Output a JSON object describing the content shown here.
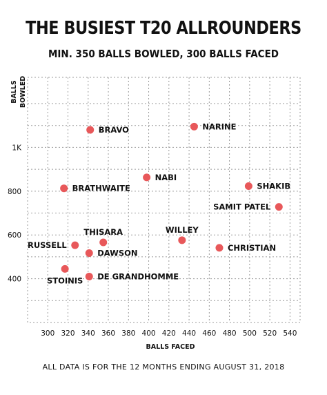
{
  "title": "THE BUSIEST T20 ALLROUNDERS",
  "subtitle": "MIN. 350 BALLS BOWLED, 300 BALLS FACED",
  "footnote": "ALL DATA IS FOR THE 12 MONTHS ENDING AUGUST 31, 2018",
  "colors": {
    "point": "#e8585a",
    "grid": "#9a9a9a",
    "text": "#111111"
  },
  "chart_data": {
    "type": "scatter",
    "title": "THE BUSIEST T20 ALLROUNDERS",
    "subtitle": "MIN. 350 BALLS BOWLED, 300 BALLS FACED",
    "xlabel": "BALLS FACED",
    "ylabel": "BALLS BOWLED",
    "xlim": [
      280,
      550
    ],
    "ylim": [
      200,
      1320
    ],
    "xticks": [
      300,
      320,
      340,
      360,
      380,
      400,
      420,
      440,
      460,
      480,
      500,
      520,
      540
    ],
    "xtick_labels": [
      "300",
      "320",
      "340",
      "360",
      "380",
      "400",
      "420",
      "440",
      "460",
      "480",
      "500",
      "520",
      "540"
    ],
    "yticks": [
      400,
      600,
      800,
      1000
    ],
    "ytick_labels": [
      "400",
      "600",
      "800",
      "1K"
    ],
    "grid": true,
    "points": [
      {
        "name": "BRAVO",
        "x": 342,
        "y": 1080,
        "label_side": "right"
      },
      {
        "name": "NARINE",
        "x": 445,
        "y": 1095,
        "label_side": "right"
      },
      {
        "name": "NABI",
        "x": 398,
        "y": 863,
        "label_side": "right"
      },
      {
        "name": "BRATHWAITE",
        "x": 316,
        "y": 813,
        "label_side": "right"
      },
      {
        "name": "SHAKIB",
        "x": 499,
        "y": 823,
        "label_side": "right"
      },
      {
        "name": "SAMIT PATEL",
        "x": 529,
        "y": 728,
        "label_side": "left"
      },
      {
        "name": "THISARA",
        "x": 355,
        "y": 566,
        "label_side": "above"
      },
      {
        "name": "WILLEY",
        "x": 433,
        "y": 576,
        "label_side": "above"
      },
      {
        "name": "RUSSELL",
        "x": 327,
        "y": 553,
        "label_side": "left"
      },
      {
        "name": "CHRISTIAN",
        "x": 470,
        "y": 541,
        "label_side": "right"
      },
      {
        "name": "DAWSON",
        "x": 341,
        "y": 517,
        "label_side": "right"
      },
      {
        "name": "STOINIS",
        "x": 317,
        "y": 445,
        "label_side": "below"
      },
      {
        "name": "DE GRANDHOMME",
        "x": 341,
        "y": 410,
        "label_side": "right"
      }
    ]
  }
}
